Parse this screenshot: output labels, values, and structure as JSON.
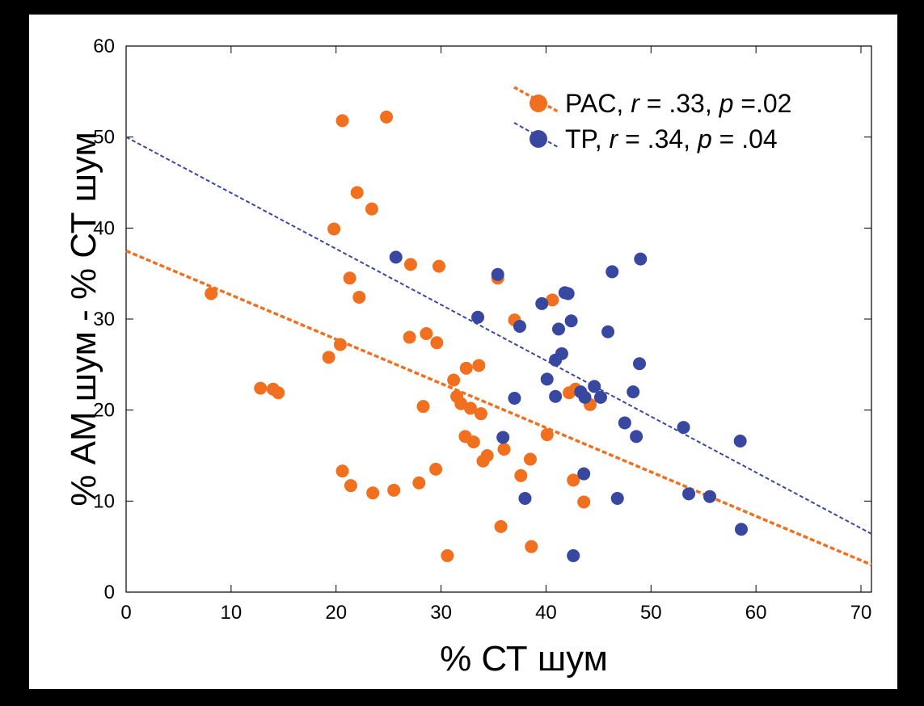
{
  "chart_data": {
    "type": "scatter",
    "xlabel": "% СТ шум",
    "ylabel": "% АМ шум - % СТ шум",
    "xlim": [
      0,
      71
    ],
    "ylim": [
      0,
      60
    ],
    "xticks": [
      "0",
      "10",
      "20",
      "30",
      "40",
      "50",
      "60",
      "70"
    ],
    "yticks": [
      "0",
      "10",
      "20",
      "30",
      "40",
      "50",
      "60"
    ],
    "legend_position": "top-right",
    "grid": false,
    "series": [
      {
        "name": "PAC",
        "legend_parts": [
          "PAC, ",
          "r",
          " = .33, ",
          "p",
          " =.02"
        ],
        "color": "#F07020",
        "trendline": {
          "x": [
            0,
            71
          ],
          "y": [
            37.5,
            3.0
          ]
        },
        "points": [
          [
            8.1,
            32.8
          ],
          [
            12.8,
            22.4
          ],
          [
            14.0,
            22.3
          ],
          [
            14.5,
            21.9
          ],
          [
            19.3,
            25.8
          ],
          [
            19.8,
            39.9
          ],
          [
            20.4,
            27.2
          ],
          [
            20.6,
            13.3
          ],
          [
            20.6,
            51.8
          ],
          [
            21.3,
            34.5
          ],
          [
            21.4,
            11.7
          ],
          [
            22.0,
            43.9
          ],
          [
            22.2,
            32.4
          ],
          [
            23.4,
            42.1
          ],
          [
            23.5,
            10.9
          ],
          [
            24.8,
            52.2
          ],
          [
            25.5,
            11.2
          ],
          [
            27.0,
            28.0
          ],
          [
            27.1,
            36.0
          ],
          [
            27.9,
            12.0
          ],
          [
            28.3,
            20.4
          ],
          [
            28.6,
            28.4
          ],
          [
            29.5,
            13.5
          ],
          [
            29.6,
            27.4
          ],
          [
            29.8,
            35.8
          ],
          [
            30.6,
            4.0
          ],
          [
            31.2,
            23.3
          ],
          [
            31.5,
            21.5
          ],
          [
            31.9,
            20.7
          ],
          [
            32.3,
            17.1
          ],
          [
            32.4,
            24.6
          ],
          [
            32.8,
            20.2
          ],
          [
            33.1,
            16.5
          ],
          [
            33.6,
            24.9
          ],
          [
            33.8,
            19.6
          ],
          [
            34.0,
            14.4
          ],
          [
            34.4,
            15.0
          ],
          [
            35.4,
            34.5
          ],
          [
            35.7,
            7.2
          ],
          [
            36.0,
            15.7
          ],
          [
            37.0,
            29.9
          ],
          [
            37.6,
            12.8
          ],
          [
            38.5,
            14.6
          ],
          [
            38.6,
            5.0
          ],
          [
            40.1,
            17.3
          ],
          [
            40.6,
            32.1
          ],
          [
            42.2,
            21.9
          ],
          [
            42.6,
            12.3
          ],
          [
            42.8,
            22.3
          ],
          [
            43.6,
            9.9
          ],
          [
            44.2,
            20.6
          ]
        ]
      },
      {
        "name": "TP",
        "legend_parts": [
          "TP, ",
          "r",
          " = .34, ",
          "p",
          " = .04"
        ],
        "color": "#3848A0",
        "trendline": {
          "x": [
            0,
            71
          ],
          "y": [
            50.0,
            6.4
          ]
        },
        "points": [
          [
            25.7,
            36.8
          ],
          [
            33.5,
            30.2
          ],
          [
            35.4,
            34.9
          ],
          [
            35.9,
            17.0
          ],
          [
            37.0,
            21.3
          ],
          [
            37.5,
            29.2
          ],
          [
            38.0,
            10.3
          ],
          [
            39.6,
            31.7
          ],
          [
            40.1,
            23.4
          ],
          [
            40.9,
            21.5
          ],
          [
            40.9,
            25.5
          ],
          [
            41.2,
            28.9
          ],
          [
            41.5,
            26.2
          ],
          [
            41.8,
            32.9
          ],
          [
            42.1,
            32.8
          ],
          [
            42.4,
            29.8
          ],
          [
            42.6,
            4.0
          ],
          [
            43.3,
            22.0
          ],
          [
            43.6,
            13.0
          ],
          [
            43.7,
            21.4
          ],
          [
            44.6,
            22.6
          ],
          [
            45.2,
            21.4
          ],
          [
            45.9,
            28.6
          ],
          [
            46.3,
            35.2
          ],
          [
            46.8,
            10.3
          ],
          [
            47.5,
            18.6
          ],
          [
            48.3,
            22.0
          ],
          [
            48.6,
            17.1
          ],
          [
            48.9,
            25.1
          ],
          [
            49.0,
            36.6
          ],
          [
            53.1,
            18.1
          ],
          [
            53.6,
            10.8
          ],
          [
            55.6,
            10.5
          ],
          [
            58.5,
            16.6
          ],
          [
            58.6,
            6.9
          ]
        ]
      }
    ]
  }
}
